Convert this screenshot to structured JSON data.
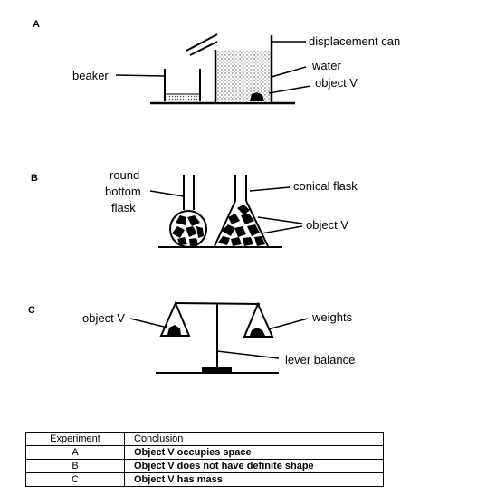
{
  "diagram": {
    "section_a": {
      "letter": "A",
      "labels": {
        "displacement_can": "displacement can",
        "water": "water",
        "object_v": "object V",
        "beaker": "beaker"
      }
    },
    "section_b": {
      "letter": "B",
      "labels": {
        "round_line1": "round",
        "round_line2": "bottom",
        "round_line3": "flask",
        "conical_flask": "conical flask",
        "object_v": "object V"
      }
    },
    "section_c": {
      "letter": "C",
      "labels": {
        "object_v": "object V",
        "weights": "weights",
        "lever_balance": "lever balance"
      }
    }
  },
  "table": {
    "headers": [
      "Experiment",
      "Conclusion"
    ],
    "rows": [
      {
        "experiment": "A",
        "conclusion": "Object V occupies space"
      },
      {
        "experiment": "B",
        "conclusion": "Object V does not have definite shape"
      },
      {
        "experiment": "C",
        "conclusion": "Object V has mass"
      }
    ]
  }
}
